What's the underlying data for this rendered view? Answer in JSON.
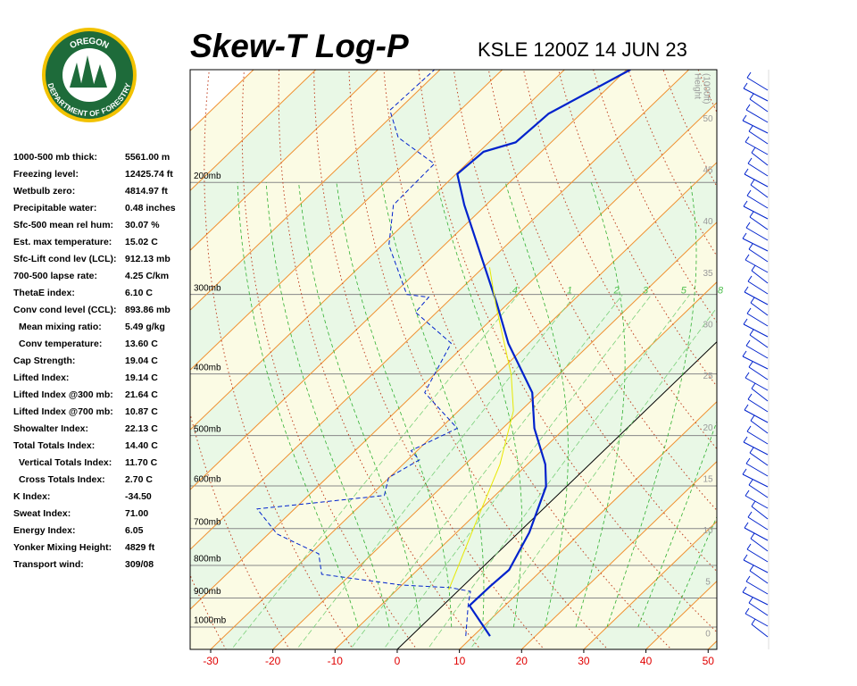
{
  "logo": {
    "top": "OREGON",
    "bottom": "DEPARTMENT OF FORESTRY"
  },
  "stats": [
    {
      "label": "1000-500 mb thick:",
      "value": "5561.00 m"
    },
    {
      "label": "Freezing level:",
      "value": "12425.74 ft"
    },
    {
      "label": "Wetbulb zero:",
      "value": "4814.97 ft"
    },
    {
      "label": "Precipitable water:",
      "value": "0.48 inches"
    },
    {
      "label": "Sfc-500 mean rel hum:",
      "value": "30.07 %"
    },
    {
      "label": "Est. max temperature:",
      "value": "15.02 C"
    },
    {
      "label": "Sfc-Lift cond lev (LCL):",
      "value": "912.13 mb"
    },
    {
      "label": "700-500 lapse rate:",
      "value": "4.25 C/km"
    },
    {
      "label": "ThetaE index:",
      "value": "6.10 C"
    },
    {
      "label": "Conv cond level (CCL):",
      "value": "893.86 mb"
    },
    {
      "label": "Mean mixing ratio:",
      "value": "5.49 g/kg"
    },
    {
      "label": "Conv temperature:",
      "value": "13.60 C"
    },
    {
      "label": "Cap Strength:",
      "value": "19.04 C"
    },
    {
      "label": "Lifted Index:",
      "value": "19.14 C"
    },
    {
      "label": "Lifted Index @300 mb:",
      "value": "21.64 C"
    },
    {
      "label": "Lifted Index @700 mb:",
      "value": "10.87 C"
    },
    {
      "label": "Showalter Index:",
      "value": "22.13 C"
    },
    {
      "label": "Total Totals Index:",
      "value": "14.40 C"
    },
    {
      "label": "Vertical Totals Index:",
      "value": "11.70 C"
    },
    {
      "label": "Cross Totals Index:",
      "value": "2.70 C"
    },
    {
      "label": "K Index:",
      "value": "-34.50"
    },
    {
      "label": "Sweat Index:",
      "value": "71.00"
    },
    {
      "label": "Energy Index:",
      "value": "6.05"
    },
    {
      "label": "Yonker Mixing Height:",
      "value": "4829 ft"
    },
    {
      "label": "Transport wind:",
      "value": "309/08"
    }
  ],
  "chart_data": {
    "type": "skew-t",
    "title": "Skew-T Log-P",
    "subtitle": "KSLE 1200Z 14 JUN 23",
    "xlim": [
      -33.3,
      51.4
    ],
    "xticks": [
      -30,
      -20,
      -10,
      0,
      10,
      20,
      30,
      40,
      50
    ],
    "ylim": [
      1084,
      133
    ],
    "log_y": true,
    "yticks": [
      {
        "value": 1000,
        "label": "1000mb"
      },
      {
        "value": 900,
        "label": "900mb"
      },
      {
        "value": 800,
        "label": "800mb"
      },
      {
        "value": 700,
        "label": "700mb"
      },
      {
        "value": 600,
        "label": "600mb"
      },
      {
        "value": 500,
        "label": "500mb"
      },
      {
        "value": 400,
        "label": "400mb"
      },
      {
        "value": 300,
        "label": "300mb"
      },
      {
        "value": 200,
        "label": "200mb"
      }
    ],
    "y2label": [
      "Height",
      "(1000ft)"
    ],
    "y2lim": [
      -1.5,
      54.8
    ],
    "y2ticks": [
      0,
      5,
      10,
      15,
      20,
      25,
      30,
      35,
      40,
      45,
      50
    ],
    "mixing_ratios": [
      {
        "value": 0.4,
        "label": ".4"
      },
      {
        "value": 1,
        "label": "1"
      },
      {
        "value": 2,
        "label": "2"
      },
      {
        "value": 3,
        "label": "3"
      },
      {
        "value": 5,
        "label": "5"
      },
      {
        "value": 8,
        "label": "8"
      }
    ],
    "series": [
      {
        "color": "#0022cc",
        "linestyle": "solid",
        "p": [
          1033,
          925,
          864,
          813,
          710,
          601,
          555,
          487,
          428,
          358,
          310,
          217,
          194,
          179,
          173,
          156,
          133
        ],
        "values": [
          12.7,
          4.3,
          4.4,
          4.7,
          1.7,
          -3.3,
          -7.1,
          -14.9,
          -21.2,
          -33.3,
          -41.8,
          -63.5,
          -69.8,
          -69.3,
          -65.7,
          -65.2,
          -59.4
        ]
      },
      {
        "color": "#0022cc",
        "linestyle": "dashed",
        "p": [
          1033,
          919,
          879,
          867,
          859,
          826,
          767,
          714,
          652,
          621,
          582,
          546,
          528,
          487,
          428,
          358,
          320,
          303,
          300,
          251,
          217,
          187,
          170,
          154,
          133
        ],
        "values": [
          8.8,
          3.8,
          2.1,
          -1.7,
          -10.0,
          -24.7,
          -28.6,
          -38.6,
          -46.0,
          -27.8,
          -30.1,
          -28.1,
          -31.0,
          -27.3,
          -38.5,
          -42.5,
          -53.4,
          -53.8,
          -57.8,
          -68.9,
          -74.9,
          -75.2,
          -85.4,
          -91.3,
          -90.9
        ]
      },
      {
        "color": "#e8e800",
        "linestyle": "thin",
        "p": [
          873,
          696,
          555,
          457,
          401,
          310,
          272
        ],
        "values": [
          -1.7,
          -8.1,
          -14.4,
          -21.2,
          -27.6,
          -42.0,
          -49.0
        ]
      }
    ]
  }
}
